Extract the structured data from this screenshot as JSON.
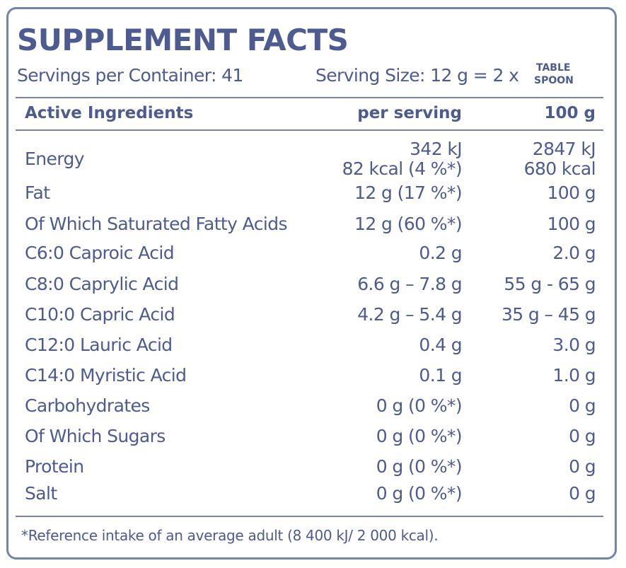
{
  "header": {
    "title": "SUPPLEMENT FACTS",
    "servings": "Servings per Container: 41",
    "serving_size": "Serving Size: 12 g = 2 x",
    "unit": [
      "TABLE",
      "SPOON"
    ]
  },
  "table": {
    "columns": [
      "Active Ingredients",
      "per serving",
      "100 g"
    ],
    "rows": [
      [
        "Energy",
        [
          "342 kJ",
          "82 kcal (4 %*)"
        ],
        [
          "2847 kJ",
          "680 kcal"
        ]
      ],
      [
        "Fat",
        "12 g (17 %*)",
        "100 g"
      ],
      [
        "Of Which Saturated Fatty Acids",
        "12 g (60 %*)",
        "100 g"
      ],
      [
        "C6:0  Caproic Acid",
        "0.2 g",
        "2.0 g"
      ],
      [
        "C8:0 Caprylic Acid",
        "6.6 g – 7.8 g",
        "55 g - 65 g"
      ],
      [
        "C10:0 Capric Acid",
        "4.2 g – 5.4 g",
        "35 g – 45 g"
      ],
      [
        "C12:0  Lauric Acid",
        "0.4 g",
        "3.0 g"
      ],
      [
        "C14:0 Myristic Acid",
        "0.1 g",
        "1.0 g"
      ],
      [
        "Carbohydrates",
        "0 g (0 %*)",
        "0 g"
      ],
      [
        "Of Which Sugars",
        "0 g (0 %*)",
        "0 g"
      ],
      [
        "Protein",
        "0 g (0 %*)",
        "0 g"
      ],
      [
        "Salt",
        "0 g (0 %*)",
        "0 g"
      ]
    ]
  },
  "footnote": "*Reference intake of an average adult (8 400 kJ/ 2 000 kcal)."
}
